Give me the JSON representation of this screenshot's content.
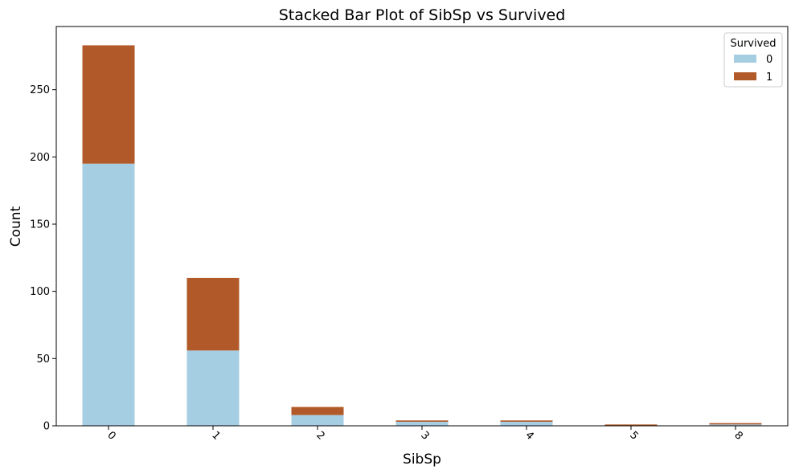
{
  "chart_data": {
    "type": "bar",
    "stacked": true,
    "title": "Stacked Bar Plot of SibSp vs Survived",
    "xlabel": "SibSp",
    "ylabel": "Count",
    "categories": [
      "0",
      "1",
      "2",
      "3",
      "4",
      "5",
      "8"
    ],
    "series": [
      {
        "name": "0",
        "color": "#a6cee3",
        "values": [
          195,
          56,
          8,
          3,
          3,
          0,
          1
        ]
      },
      {
        "name": "1",
        "color": "#b15928",
        "values": [
          88,
          54,
          6,
          1,
          1,
          1,
          1
        ]
      }
    ],
    "ylim": [
      0,
      297
    ],
    "yticks": [
      0,
      50,
      100,
      150,
      200,
      250
    ],
    "legend": {
      "title": "Survived",
      "placement": "top-right"
    },
    "grid": false,
    "xtick_rotation": 45
  }
}
